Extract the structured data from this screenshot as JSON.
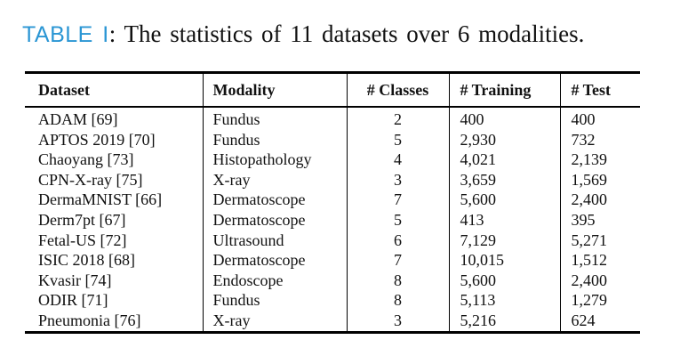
{
  "caption": {
    "label": "TABLE I",
    "text": ": The statistics of 11 datasets over 6 modalities."
  },
  "colors": {
    "caption_label_blue": "#2B96D4",
    "text": "#111111",
    "rule": "#000000"
  },
  "table": {
    "headers": [
      "Dataset",
      "Modality",
      "# Classes",
      "# Training",
      "# Test"
    ],
    "rows": [
      [
        "ADAM [69]",
        "Fundus",
        "2",
        "400",
        "400"
      ],
      [
        "APTOS 2019 [70]",
        "Fundus",
        "5",
        "2,930",
        "732"
      ],
      [
        "Chaoyang [73]",
        "Histopathology",
        "4",
        "4,021",
        "2,139"
      ],
      [
        "CPN-X-ray [75]",
        "X-ray",
        "3",
        "3,659",
        "1,569"
      ],
      [
        "DermaMNIST [66]",
        "Dermatoscope",
        "7",
        "5,600",
        "2,400"
      ],
      [
        "Derm7pt [67]",
        "Dermatoscope",
        "5",
        "413",
        "395"
      ],
      [
        "Fetal-US [72]",
        "Ultrasound",
        "6",
        "7,129",
        "5,271"
      ],
      [
        "ISIC 2018 [68]",
        "Dermatoscope",
        "7",
        "10,015",
        "1,512"
      ],
      [
        "Kvasir [74]",
        "Endoscope",
        "8",
        "5,600",
        "2,400"
      ],
      [
        "ODIR [71]",
        "Fundus",
        "8",
        "5,113",
        "1,279"
      ],
      [
        "Pneumonia [76]",
        "X-ray",
        "3",
        "5,216",
        "624"
      ]
    ]
  }
}
